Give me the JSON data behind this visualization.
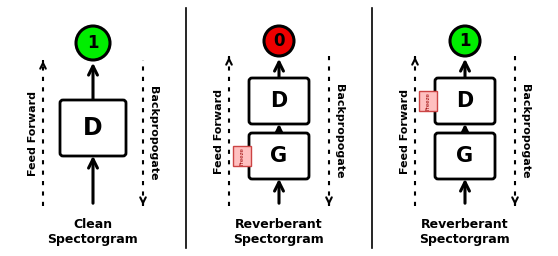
{
  "fig_width": 5.58,
  "fig_height": 2.56,
  "panel1": {
    "label_bottom": "Clean\nSpectorgram",
    "circle_color": "#00ee00",
    "circle_label": "1",
    "has_G": false,
    "freeze_on": "none"
  },
  "panel2": {
    "label_bottom": "Reverberant\nSpectorgram",
    "circle_color": "#ee0000",
    "circle_label": "0",
    "has_G": true,
    "freeze_on": "G"
  },
  "panel3": {
    "label_bottom": "Reverberant\nSpectorgram",
    "circle_color": "#00ee00",
    "circle_label": "1",
    "has_G": true,
    "freeze_on": "D"
  },
  "ff_text": "Feed Forward",
  "bp_text": "Backpropogate",
  "freeze_text": "Freeze",
  "freeze_bg": "#ffc0c0",
  "freeze_edge": "#cc4444"
}
